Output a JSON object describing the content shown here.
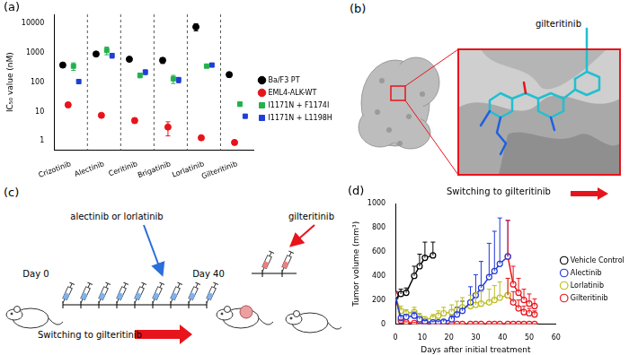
{
  "chart_data": [
    {
      "title": "(a)",
      "type": "scatter",
      "categories": [
        "Crizotinib",
        "Alectinib",
        "Ceritinib",
        "Brigatinib",
        "Lorlatinib",
        "Gilteritinib"
      ],
      "ylabel": "IC₅₀ value (nM)",
      "log": "y",
      "ylim": [
        0.5,
        20000
      ],
      "yticks": [
        1,
        10,
        100,
        1000,
        10000
      ],
      "grid": false,
      "legend": "right",
      "series": [
        {
          "name": "Ba/F3 PT",
          "color": "#000000",
          "marker": "circle",
          "values": [
            380,
            900,
            600,
            550,
            7500,
            180
          ],
          "errors": [
            60,
            100,
            80,
            120,
            2000,
            30
          ]
        },
        {
          "name": "EML4-ALK-WT",
          "color": "#e8141b",
          "marker": "circle",
          "values": [
            17,
            7.5,
            5,
            3,
            1.3,
            0.9
          ],
          "errors": [
            3,
            1,
            1,
            1.5,
            0.2,
            0.15
          ]
        },
        {
          "name": "I1171N + F1174I",
          "color": "#22b14c",
          "marker": "square",
          "values": [
            350,
            1200,
            170,
            130,
            350,
            18
          ],
          "errors": [
            100,
            350,
            30,
            40,
            40,
            3
          ]
        },
        {
          "name": "I1171N + L1198H",
          "color": "#1f3fd6",
          "marker": "square",
          "values": [
            105,
            800,
            220,
            120,
            380,
            7
          ],
          "errors": [
            15,
            150,
            40,
            25,
            50,
            1
          ]
        }
      ]
    },
    {
      "title": "(d)",
      "type": "line",
      "annotation": "Switching to gilteritinib",
      "xlabel": "Days after initial treatment",
      "ylabel": "Tumor volume (mm³)",
      "xlim": [
        0,
        60
      ],
      "xticks": [
        0,
        10,
        20,
        30,
        40,
        50,
        60
      ],
      "ylim": [
        0,
        1000
      ],
      "yticks": [
        0,
        200,
        400,
        600,
        800,
        1000
      ],
      "grid": false,
      "legend": "right",
      "marker": "circle",
      "series": [
        {
          "name": "Vehicle Control",
          "color": "#000000",
          "x": [
            0,
            2,
            4,
            7,
            9,
            11,
            14
          ],
          "values": [
            240,
            250,
            260,
            400,
            480,
            550,
            570
          ],
          "errors": [
            30,
            40,
            40,
            80,
            100,
            130,
            110
          ]
        },
        {
          "name": "Alectinib",
          "color": "#2038d8",
          "x": [
            0,
            2,
            4,
            7,
            9,
            11,
            14,
            16,
            18,
            21,
            23,
            25,
            28,
            30,
            32,
            35,
            37,
            39,
            42
          ],
          "values": [
            230,
            50,
            60,
            70,
            40,
            20,
            15,
            15,
            20,
            40,
            80,
            110,
            180,
            240,
            300,
            390,
            440,
            500,
            560
          ],
          "errors": [
            40,
            20,
            20,
            30,
            20,
            10,
            10,
            10,
            15,
            30,
            60,
            80,
            130,
            170,
            220,
            280,
            330,
            380,
            300
          ]
        },
        {
          "name": "Lorlatinib",
          "color": "#bcbd22",
          "x": [
            0,
            2,
            4,
            7,
            9,
            11,
            14,
            16,
            18,
            21,
            23,
            25,
            28,
            30,
            32,
            35,
            37,
            39,
            42
          ],
          "values": [
            220,
            110,
            90,
            100,
            60,
            40,
            50,
            70,
            90,
            100,
            120,
            140,
            150,
            160,
            170,
            180,
            200,
            220,
            240
          ],
          "errors": [
            40,
            40,
            30,
            40,
            30,
            20,
            30,
            40,
            50,
            60,
            70,
            80,
            90,
            100,
            100,
            110,
            120,
            130,
            140
          ]
        },
        {
          "name": "Gilteritinib",
          "color": "#e8141b",
          "x": [
            0,
            2,
            4,
            7,
            9,
            11,
            14,
            16,
            18,
            21,
            23,
            25,
            28,
            30,
            32,
            35,
            37,
            39,
            42,
            44,
            46,
            48,
            50,
            52
          ],
          "values": [
            230,
            30,
            15,
            10,
            5,
            3,
            2,
            2,
            2,
            2,
            2,
            2,
            2,
            2,
            2,
            2,
            2,
            2,
            2,
            2,
            2,
            2,
            2,
            2
          ],
          "errors": [
            30,
            10,
            5,
            5,
            3,
            2,
            1,
            1,
            1,
            1,
            1,
            1,
            1,
            1,
            1,
            1,
            1,
            1,
            1,
            1,
            1,
            1,
            1,
            1
          ]
        },
        {
          "name": "Gilteritinib",
          "color": "#e8141b",
          "x": [
            42,
            44,
            46,
            48,
            50,
            52
          ],
          "values": [
            560,
            330,
            260,
            200,
            170,
            150
          ],
          "errors": [
            300,
            150,
            120,
            90,
            80,
            60
          ]
        },
        {
          "name": "Gilteritinib",
          "color": "#e8141b",
          "x": [
            42,
            44,
            46,
            48,
            50,
            52
          ],
          "values": [
            240,
            180,
            130,
            100,
            90,
            80
          ],
          "errors": [
            140,
            90,
            70,
            50,
            40,
            30
          ]
        }
      ]
    }
  ],
  "panel_b": {
    "title": "(b)",
    "ligand_label": "gilteritinib"
  },
  "panel_c": {
    "title": "(c)",
    "first_drug": "alectinib or lorlatinib",
    "start_day": "Day 0",
    "switch_day": "Day 40",
    "second_drug": "gilteritinib",
    "switch_label": "Switching to gilteritinib"
  }
}
